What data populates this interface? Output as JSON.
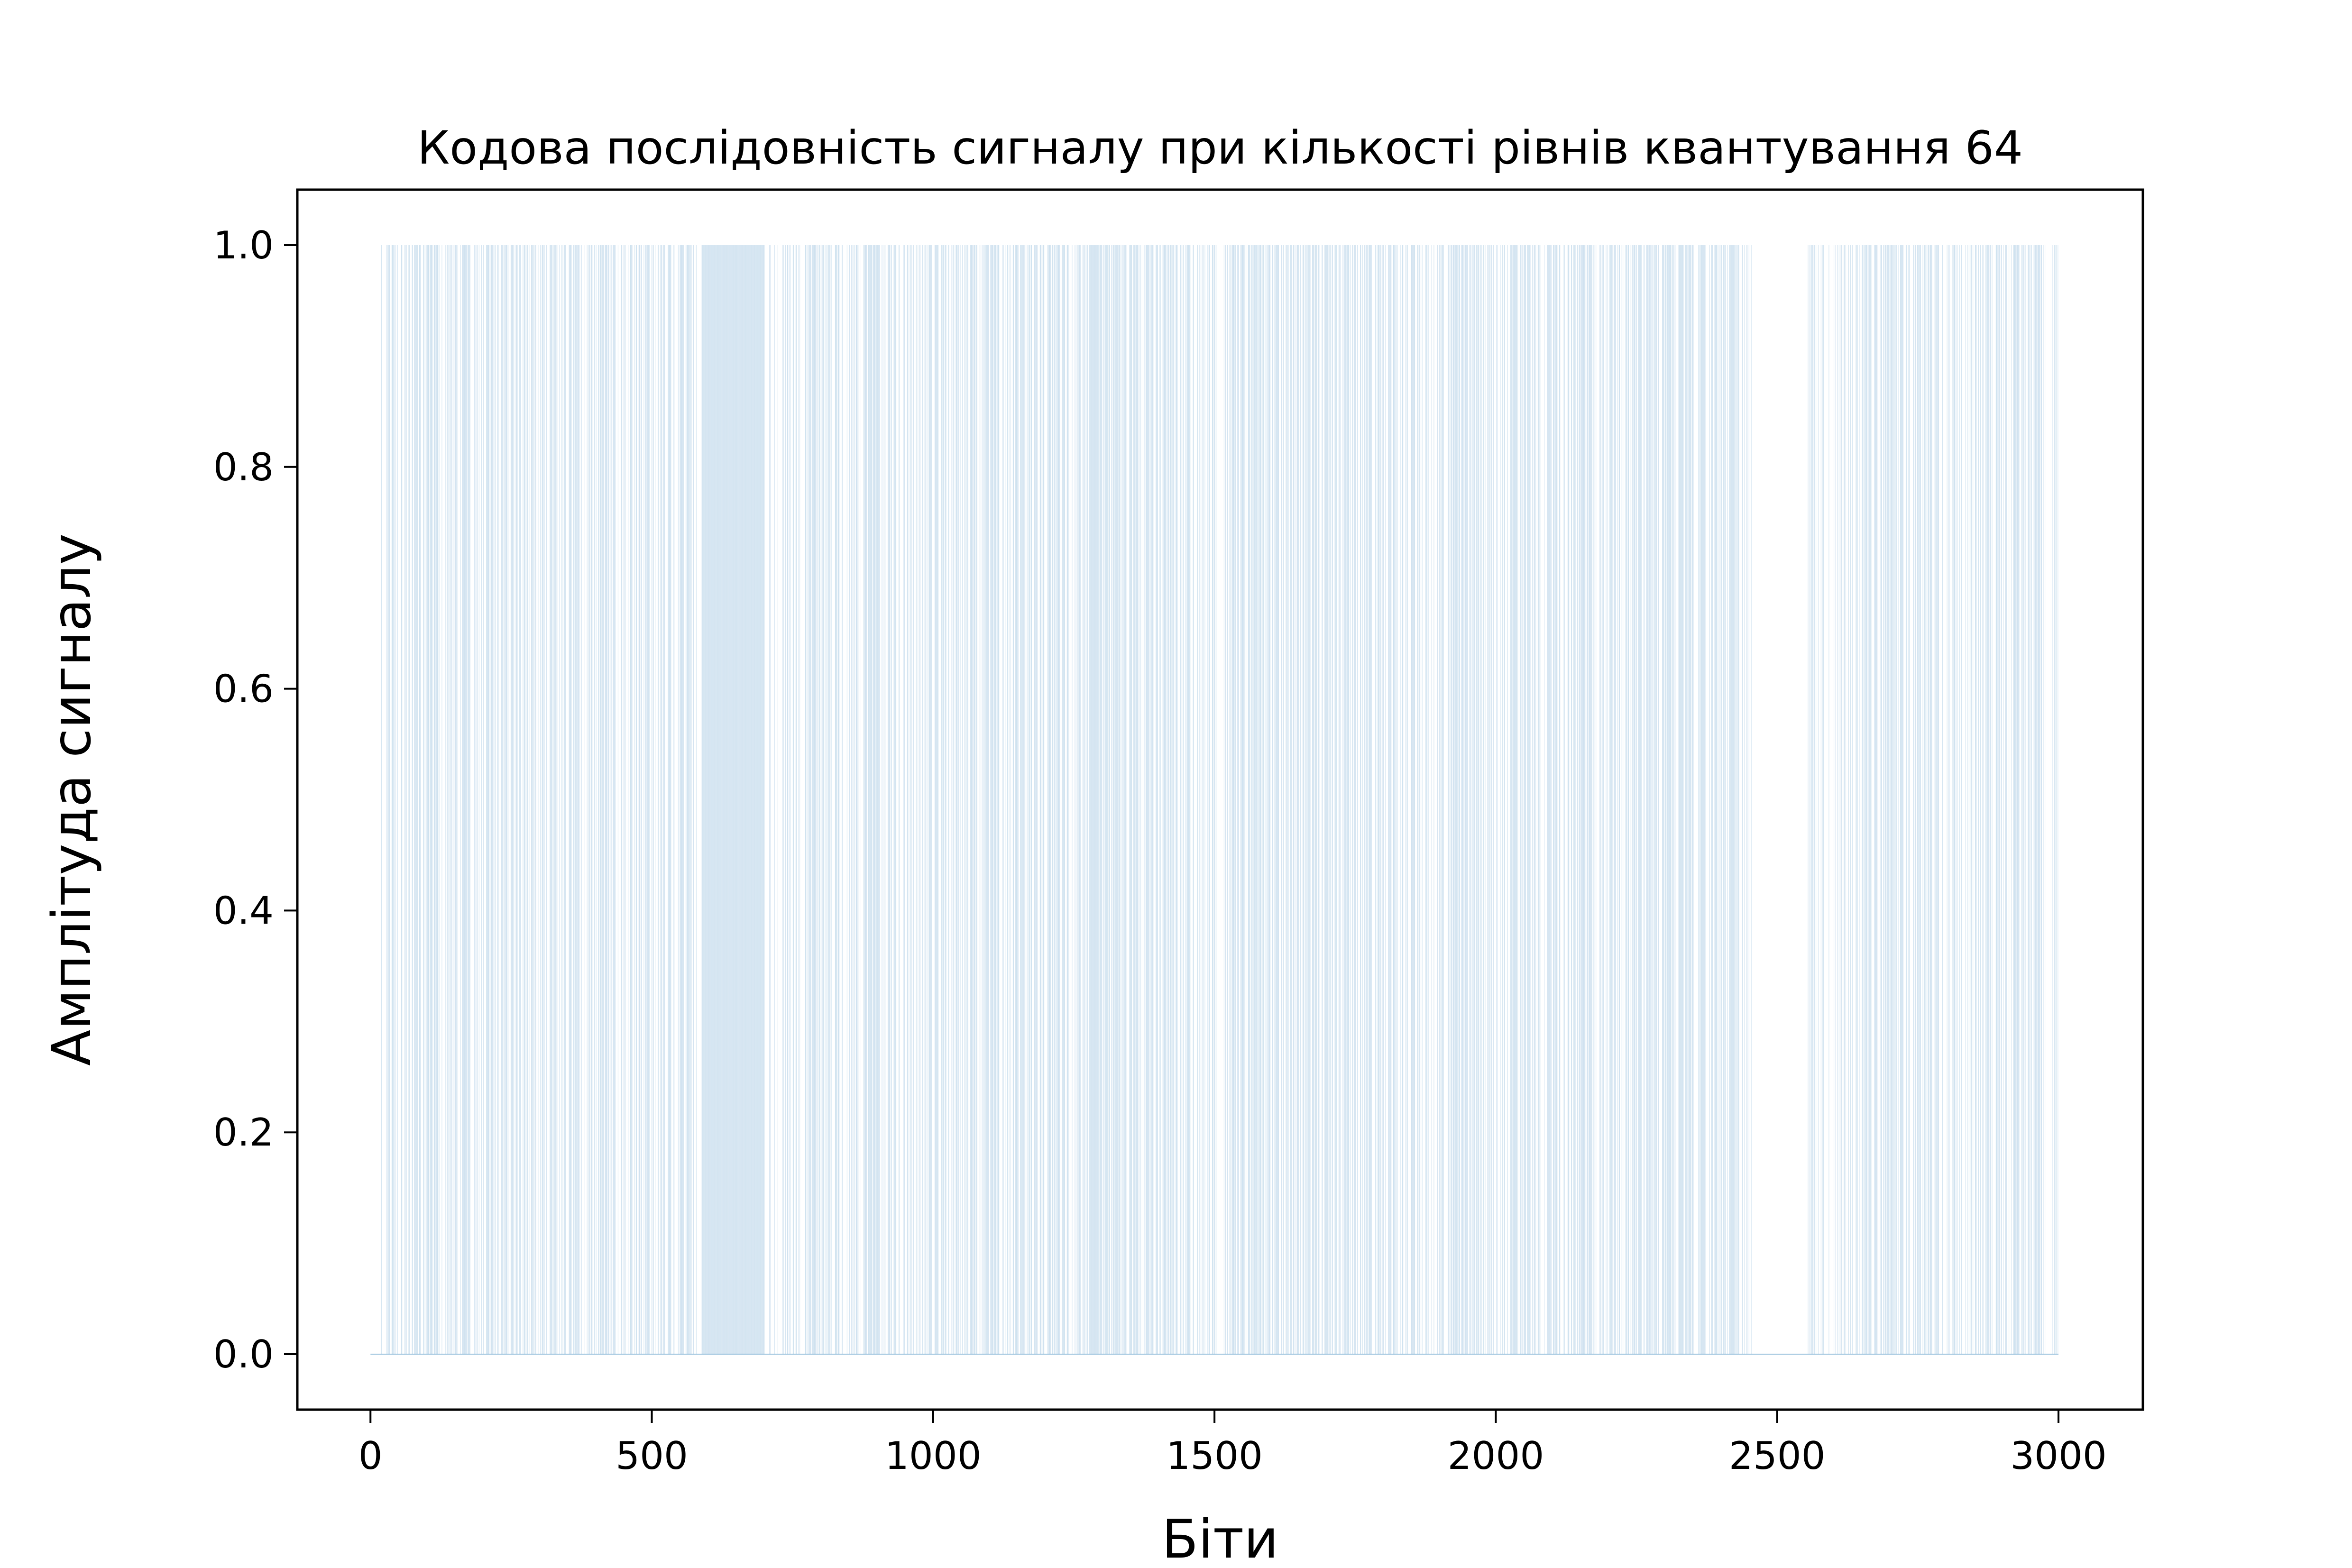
{
  "chart_data": {
    "type": "bar",
    "title": "Кодова послідовність сигналу при кількості рівнів квантування 64",
    "xlabel": "Біти",
    "ylabel": "Амплітуда сигналу",
    "xlim": [
      -130,
      3150
    ],
    "ylim": [
      -0.05,
      1.05
    ],
    "xticks": [
      0,
      500,
      1000,
      1500,
      2000,
      2500,
      3000
    ],
    "xtick_labels": [
      "0",
      "500",
      "1000",
      "1500",
      "2000",
      "2500",
      "3000"
    ],
    "yticks": [
      0.0,
      0.2,
      0.4,
      0.6,
      0.8,
      1.0
    ],
    "ytick_labels": [
      "0.0",
      "0.2",
      "0.4",
      "0.6",
      "0.8",
      "1.0"
    ],
    "grid": false,
    "legend": "none",
    "bar_color": "#1f77b4",
    "bar_opacity": 0.22,
    "n_bits": 3000,
    "value_description": "binary bit sequence, each bit is 0 or 1; bars of height 1 drawn where bit = 1",
    "one_bit_segments": [
      [
        15,
        20,
        0.35
      ],
      [
        20,
        60,
        0.45
      ],
      [
        60,
        120,
        0.5
      ],
      [
        120,
        170,
        0.45
      ],
      [
        170,
        230,
        0.5
      ],
      [
        230,
        280,
        0.55
      ],
      [
        280,
        330,
        0.5
      ],
      [
        330,
        380,
        0.45
      ],
      [
        380,
        430,
        0.55
      ],
      [
        430,
        480,
        0.4
      ],
      [
        480,
        530,
        0.45
      ],
      [
        530,
        590,
        0.4
      ],
      [
        590,
        660,
        1.0
      ],
      [
        660,
        700,
        1.0
      ],
      [
        700,
        730,
        0.3
      ],
      [
        730,
        790,
        0.55
      ],
      [
        790,
        850,
        0.5
      ],
      [
        850,
        910,
        0.55
      ],
      [
        910,
        970,
        0.5
      ],
      [
        970,
        1030,
        0.5
      ],
      [
        1030,
        1090,
        0.45
      ],
      [
        1090,
        1150,
        0.5
      ],
      [
        1150,
        1210,
        0.45
      ],
      [
        1210,
        1270,
        0.55
      ],
      [
        1270,
        1330,
        0.7
      ],
      [
        1330,
        1380,
        0.5
      ],
      [
        1380,
        1440,
        0.55
      ],
      [
        1440,
        1500,
        0.55
      ],
      [
        1500,
        1560,
        0.5
      ],
      [
        1560,
        1630,
        0.55
      ],
      [
        1630,
        1700,
        0.6
      ],
      [
        1700,
        1780,
        0.6
      ],
      [
        1780,
        1860,
        0.55
      ],
      [
        1860,
        1920,
        0.45
      ],
      [
        1920,
        1990,
        0.5
      ],
      [
        1990,
        2050,
        0.5
      ],
      [
        2050,
        2110,
        0.45
      ],
      [
        2110,
        2180,
        0.5
      ],
      [
        2180,
        2240,
        0.5
      ],
      [
        2240,
        2300,
        0.6
      ],
      [
        2300,
        2360,
        0.5
      ],
      [
        2360,
        2410,
        0.45
      ],
      [
        2410,
        2460,
        0.35
      ],
      [
        2555,
        2610,
        0.5
      ],
      [
        2610,
        2670,
        0.5
      ],
      [
        2670,
        2730,
        0.45
      ],
      [
        2730,
        2790,
        0.6
      ],
      [
        2790,
        2850,
        0.5
      ],
      [
        2850,
        2910,
        0.45
      ],
      [
        2910,
        2960,
        0.5
      ],
      [
        2960,
        3000,
        0.4
      ]
    ]
  }
}
